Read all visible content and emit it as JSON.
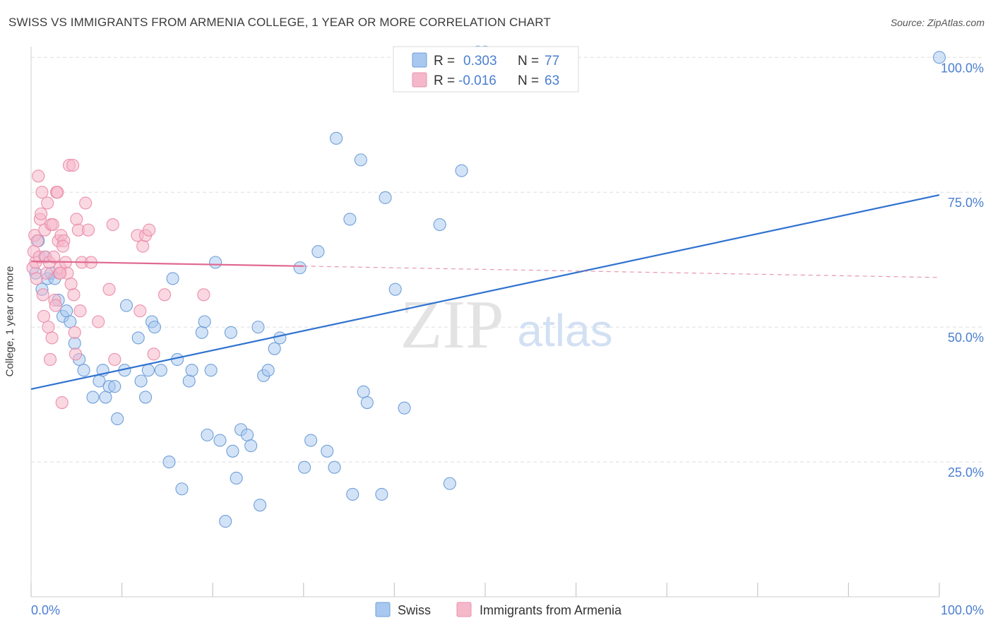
{
  "title": "SWISS VS IMMIGRANTS FROM ARMENIA COLLEGE, 1 YEAR OR MORE CORRELATION CHART",
  "source": "Source: ZipAtlas.com",
  "colors": {
    "swiss_fill": "#a8c8f0",
    "swiss_stroke": "#6f9fd8",
    "swiss_line": "#2f72d0",
    "armenia_fill": "#f5b8cb",
    "armenia_stroke": "#ea90ad",
    "armenia_line": "#e0688f",
    "tick_text": "#4a7fd0",
    "grid": "#dedede"
  },
  "legend": {
    "rows": [
      {
        "r_label": "R =",
        "r_value": "0.303",
        "n_label": "N =",
        "n_value": "77"
      },
      {
        "r_label": "R =",
        "r_value": "-0.016",
        "n_label": "N =",
        "n_value": "63"
      }
    ]
  },
  "bottom_legend": [
    "Swiss",
    "Immigrants from Armenia"
  ],
  "chart_data": {
    "type": "scatter",
    "xlabel": "",
    "ylabel": "College, 1 year or more",
    "xlim": [
      0,
      100
    ],
    "ylim": [
      0,
      102
    ],
    "x_tick_labels": [
      "0.0%",
      "100.0%"
    ],
    "y_tick_labels": [
      "25.0%",
      "50.0%",
      "75.0%",
      "100.0%"
    ],
    "y_ticks": [
      25,
      50,
      75,
      100
    ],
    "watermark": {
      "zip": "ZIP",
      "atlas": "atlas"
    },
    "series": [
      {
        "name": "Swiss",
        "r": 0.303,
        "n": 77,
        "trend": {
          "x0": 0,
          "y0": 38.5,
          "x1": 100,
          "y1": 74.5,
          "dashed_from": null
        },
        "points": [
          [
            0.5,
            60
          ],
          [
            0.8,
            66
          ],
          [
            1.2,
            57
          ],
          [
            1.5,
            63
          ],
          [
            1.8,
            59
          ],
          [
            2.2,
            60
          ],
          [
            2.6,
            59
          ],
          [
            3,
            55
          ],
          [
            3.5,
            52
          ],
          [
            3.9,
            53
          ],
          [
            4.3,
            51
          ],
          [
            4.8,
            47
          ],
          [
            5.3,
            44
          ],
          [
            5.8,
            42
          ],
          [
            6.8,
            37
          ],
          [
            7.5,
            40
          ],
          [
            7.9,
            42
          ],
          [
            8.2,
            37
          ],
          [
            8.6,
            39
          ],
          [
            9.2,
            39
          ],
          [
            9.5,
            33
          ],
          [
            10.3,
            42
          ],
          [
            10.5,
            54
          ],
          [
            11.8,
            48
          ],
          [
            12.1,
            40
          ],
          [
            12.6,
            37
          ],
          [
            12.9,
            42
          ],
          [
            13.3,
            51
          ],
          [
            13.6,
            50
          ],
          [
            14.3,
            42
          ],
          [
            15.2,
            25
          ],
          [
            15.6,
            59
          ],
          [
            16.1,
            44
          ],
          [
            16.6,
            20
          ],
          [
            17.4,
            40
          ],
          [
            17.7,
            42
          ],
          [
            18.8,
            49
          ],
          [
            19.1,
            51
          ],
          [
            19.4,
            30
          ],
          [
            19.8,
            42
          ],
          [
            20.3,
            62
          ],
          [
            20.8,
            29
          ],
          [
            21.4,
            14
          ],
          [
            22.0,
            49
          ],
          [
            22.2,
            27
          ],
          [
            22.6,
            22
          ],
          [
            23.1,
            31
          ],
          [
            23.8,
            30
          ],
          [
            24.2,
            28
          ],
          [
            25.0,
            50
          ],
          [
            25.2,
            17
          ],
          [
            25.6,
            41
          ],
          [
            26.1,
            42
          ],
          [
            26.8,
            46
          ],
          [
            27.4,
            48
          ],
          [
            29.6,
            61
          ],
          [
            30.1,
            24
          ],
          [
            30.8,
            29
          ],
          [
            31.6,
            64
          ],
          [
            32.6,
            27
          ],
          [
            33.4,
            24
          ],
          [
            33.6,
            85
          ],
          [
            35.1,
            70
          ],
          [
            35.4,
            19
          ],
          [
            36.6,
            38
          ],
          [
            37.0,
            36
          ],
          [
            36.3,
            81
          ],
          [
            38.6,
            19
          ],
          [
            39.0,
            74
          ],
          [
            40.1,
            57
          ],
          [
            41.1,
            35
          ],
          [
            45.0,
            69
          ],
          [
            46.1,
            21
          ],
          [
            47.4,
            79
          ],
          [
            49.2,
            101
          ],
          [
            50.0,
            101
          ],
          [
            100,
            100
          ]
        ]
      },
      {
        "name": "Immigrants from Armenia",
        "r": -0.016,
        "n": 63,
        "trend": {
          "x0": 0,
          "y0": 62.2,
          "x1": 100,
          "y1": 59.2,
          "dashed_from": 30
        },
        "points": [
          [
            0.2,
            61
          ],
          [
            0.3,
            64
          ],
          [
            0.4,
            67
          ],
          [
            0.5,
            62
          ],
          [
            0.6,
            59
          ],
          [
            0.7,
            66
          ],
          [
            0.8,
            78
          ],
          [
            0.9,
            63
          ],
          [
            1.0,
            70
          ],
          [
            1.1,
            71
          ],
          [
            1.2,
            75
          ],
          [
            1.3,
            56
          ],
          [
            1.4,
            52
          ],
          [
            1.5,
            68
          ],
          [
            1.6,
            63
          ],
          [
            1.7,
            60
          ],
          [
            1.8,
            73
          ],
          [
            1.9,
            50
          ],
          [
            2.0,
            62
          ],
          [
            2.1,
            44
          ],
          [
            2.2,
            69
          ],
          [
            2.3,
            48
          ],
          [
            2.4,
            69
          ],
          [
            2.5,
            63
          ],
          [
            2.6,
            55
          ],
          [
            2.7,
            54
          ],
          [
            2.8,
            75
          ],
          [
            2.9,
            75
          ],
          [
            3.0,
            66
          ],
          [
            3.1,
            60
          ],
          [
            3.2,
            61
          ],
          [
            3.3,
            67
          ],
          [
            3.4,
            36
          ],
          [
            3.6,
            66
          ],
          [
            3.8,
            62
          ],
          [
            4.0,
            60
          ],
          [
            4.2,
            80
          ],
          [
            3.2,
            60
          ],
          [
            3.5,
            65
          ],
          [
            4.4,
            58
          ],
          [
            4.8,
            49
          ],
          [
            5.0,
            70
          ],
          [
            5.2,
            68
          ],
          [
            5.4,
            53
          ],
          [
            5.6,
            62
          ],
          [
            4.6,
            80
          ],
          [
            4.7,
            56
          ],
          [
            4.9,
            45
          ],
          [
            6.0,
            73
          ],
          [
            6.3,
            68
          ],
          [
            6.6,
            62
          ],
          [
            7.4,
            51
          ],
          [
            8.6,
            57
          ],
          [
            9.0,
            69
          ],
          [
            9.2,
            44
          ],
          [
            11.7,
            67
          ],
          [
            12.0,
            53
          ],
          [
            12.3,
            65
          ],
          [
            12.6,
            67
          ],
          [
            13.0,
            68
          ],
          [
            13.5,
            45
          ],
          [
            14.7,
            56
          ],
          [
            19.0,
            56
          ]
        ]
      }
    ]
  }
}
